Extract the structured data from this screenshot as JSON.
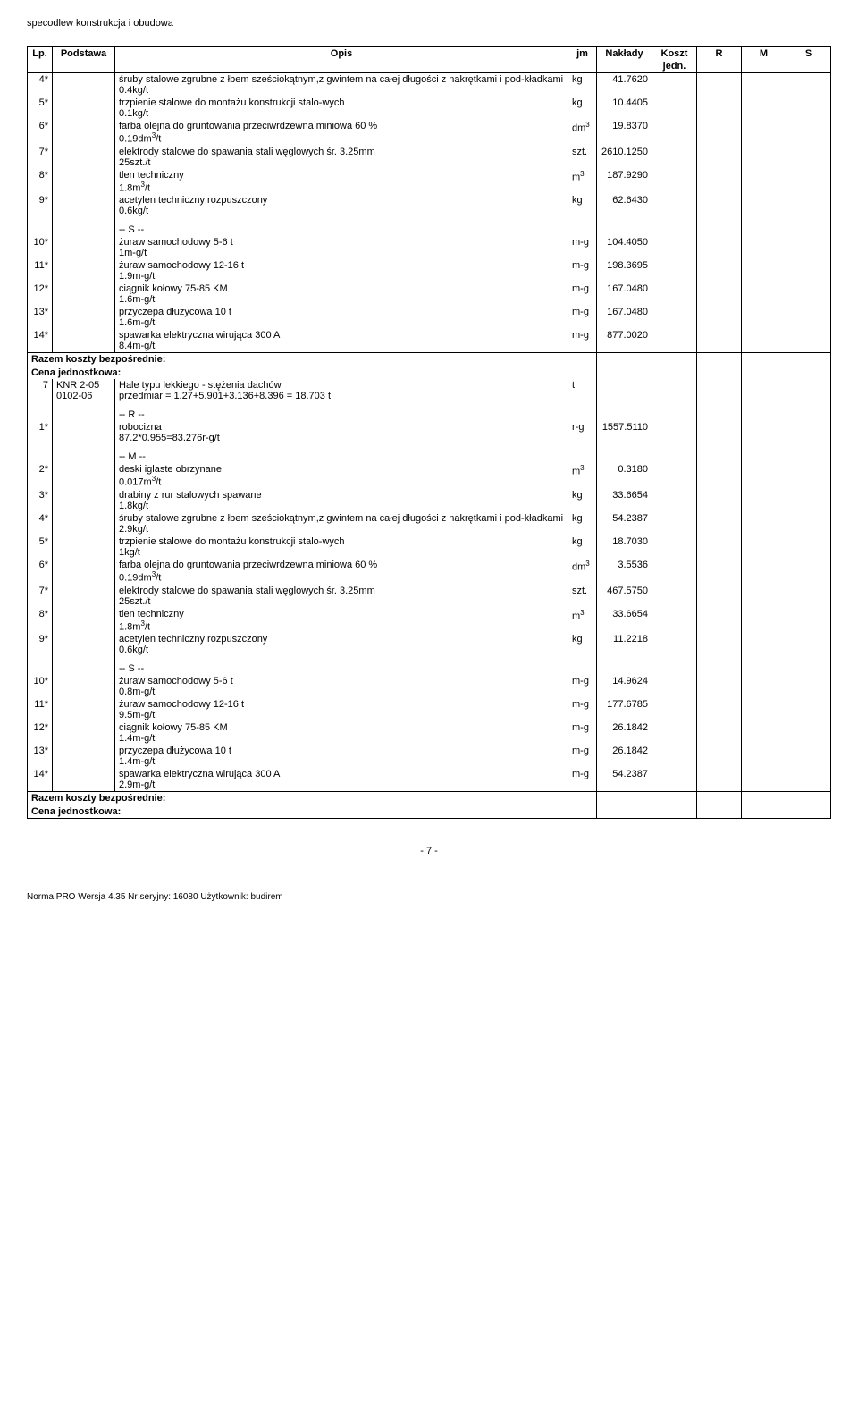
{
  "doc_title": "specodlew konstrukcja i obudowa",
  "headers": {
    "lp": "Lp.",
    "podstawa": "Podstawa",
    "opis": "Opis",
    "jm": "jm",
    "naklady": "Nakłady",
    "koszt": "Koszt",
    "jedn": "jedn.",
    "r": "R",
    "m": "M",
    "s": "S"
  },
  "rows": [
    {
      "lp": "4*",
      "opis": "śruby stalowe zgrubne z łbem sześciokątnym,z gwintem na całej długości z nakrętkami i pod-kładkami\n0.4kg/t",
      "jm": "kg",
      "val": "41.7620"
    },
    {
      "lp": "5*",
      "opis": "trzpienie stalowe do montażu konstrukcji stalo-wych\n0.1kg/t",
      "jm": "kg",
      "val": "10.4405"
    },
    {
      "lp": "6*",
      "opis": "farba olejna do gruntowania przeciwrdzewna miniowa 60 %\n0.19dm³/t",
      "jm": "dm³",
      "val": "19.8370"
    },
    {
      "lp": "7*",
      "opis": "elektrody stalowe do spawania stali węglowych śr. 3.25mm\n25szt./t",
      "jm": "szt.",
      "val": "2610.1250"
    },
    {
      "lp": "8*",
      "opis": "tlen techniczny\n1.8m³/t",
      "jm": "m³",
      "val": "187.9290"
    },
    {
      "lp": "9*",
      "opis": "acetylen techniczny rozpuszczony\n0.6kg/t",
      "jm": "kg",
      "val": "62.6430"
    },
    {
      "section": "-- S --"
    },
    {
      "lp": "10*",
      "opis": "żuraw samochodowy 5-6 t\n1m-g/t",
      "jm": "m-g",
      "val": "104.4050"
    },
    {
      "lp": "11*",
      "opis": "żuraw samochodowy 12-16 t\n1.9m-g/t",
      "jm": "m-g",
      "val": "198.3695"
    },
    {
      "lp": "12*",
      "opis": "ciągnik kołowy 75-85 KM\n1.6m-g/t",
      "jm": "m-g",
      "val": "167.0480"
    },
    {
      "lp": "13*",
      "opis": "przyczepa dłużycowa 10 t\n1.6m-g/t",
      "jm": "m-g",
      "val": "167.0480"
    },
    {
      "lp": "14*",
      "opis": "spawarka elektryczna wirująca 300 A\n8.4m-g/t",
      "jm": "m-g",
      "val": "877.0020"
    },
    {
      "summary": "Razem koszty bezpośrednie:"
    },
    {
      "summary": "Cena jednostkowa:"
    },
    {
      "lp": "7",
      "podstawa": "KNR 2-05\n0102-06",
      "opis": "Hale typu lekkiego - stężenia dachów\nprzedmiar  = 1.27+5.901+3.136+8.396 = 18.703 t",
      "jm": "t",
      "val": ""
    },
    {
      "section": "-- R --"
    },
    {
      "lp": "1*",
      "opis": "robocizna\n87.2*0.955=83.276r-g/t",
      "jm": "r-g",
      "val": "1557.5110"
    },
    {
      "section": "-- M --"
    },
    {
      "lp": "2*",
      "opis": "deski iglaste obrzynane\n0.017m³/t",
      "jm": "m³",
      "val": "0.3180"
    },
    {
      "lp": "3*",
      "opis": "drabiny z rur stalowych spawane\n1.8kg/t",
      "jm": "kg",
      "val": "33.6654"
    },
    {
      "lp": "4*",
      "opis": "śruby stalowe zgrubne z łbem sześciokątnym,z gwintem na całej długości z nakrętkami i pod-kładkami\n2.9kg/t",
      "jm": "kg",
      "val": "54.2387"
    },
    {
      "lp": "5*",
      "opis": "trzpienie stalowe do montażu konstrukcji stalo-wych\n1kg/t",
      "jm": "kg",
      "val": "18.7030"
    },
    {
      "lp": "6*",
      "opis": "farba olejna do gruntowania przeciwrdzewna miniowa 60 %\n0.19dm³/t",
      "jm": "dm³",
      "val": "3.5536"
    },
    {
      "lp": "7*",
      "opis": "elektrody stalowe do spawania stali węglowych śr. 3.25mm\n25szt./t",
      "jm": "szt.",
      "val": "467.5750"
    },
    {
      "lp": "8*",
      "opis": "tlen techniczny\n1.8m³/t",
      "jm": "m³",
      "val": "33.6654"
    },
    {
      "lp": "9*",
      "opis": "acetylen techniczny rozpuszczony\n0.6kg/t",
      "jm": "kg",
      "val": "11.2218"
    },
    {
      "section": "-- S --"
    },
    {
      "lp": "10*",
      "opis": "żuraw samochodowy 5-6 t\n0.8m-g/t",
      "jm": "m-g",
      "val": "14.9624"
    },
    {
      "lp": "11*",
      "opis": "żuraw samochodowy 12-16 t\n9.5m-g/t",
      "jm": "m-g",
      "val": "177.6785"
    },
    {
      "lp": "12*",
      "opis": "ciągnik kołowy 75-85 KM\n1.4m-g/t",
      "jm": "m-g",
      "val": "26.1842"
    },
    {
      "lp": "13*",
      "opis": "przyczepa dłużycowa 10 t\n1.4m-g/t",
      "jm": "m-g",
      "val": "26.1842"
    },
    {
      "lp": "14*",
      "opis": "spawarka elektryczna wirująca 300 A\n2.9m-g/t",
      "jm": "m-g",
      "val": "54.2387"
    },
    {
      "summary": "Razem koszty bezpośrednie:"
    },
    {
      "summary": "Cena jednostkowa:"
    }
  ],
  "page_num": "- 7 -",
  "footer": "Norma PRO Wersja 4.35 Nr seryjny: 16080 Użytkownik: budirem"
}
